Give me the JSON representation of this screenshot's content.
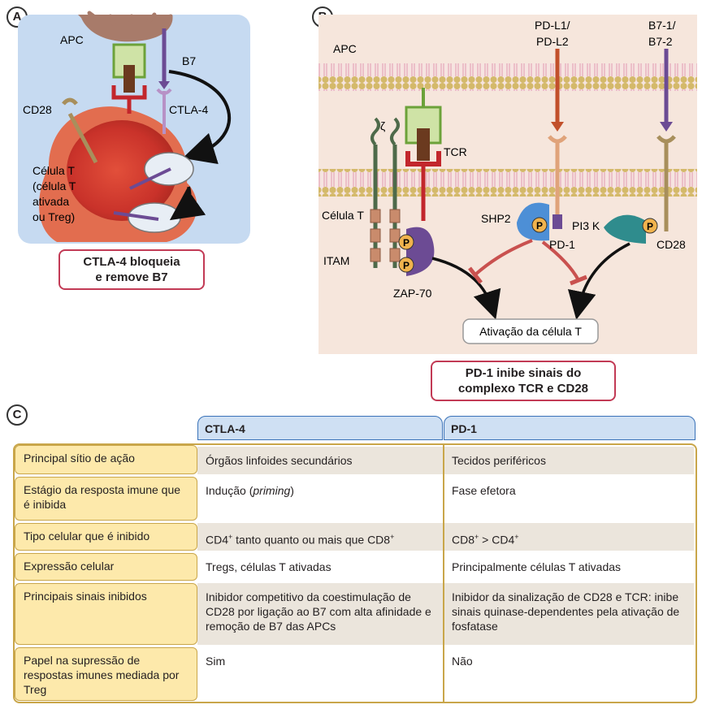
{
  "panel_a": {
    "letter": "A",
    "labels": {
      "apc": "APC",
      "b7": "B7",
      "cd28": "CD28",
      "ctla4": "CTLA-4",
      "tcell_lines": [
        "Célula T",
        "(célula T",
        "ativada",
        "ou Treg)"
      ]
    },
    "callout": [
      "CTLA-4 bloqueia",
      "e remove B7"
    ]
  },
  "panel_b": {
    "letter": "B",
    "labels": {
      "apc": "APC",
      "pdl": [
        "PD-L1/",
        "PD-L2"
      ],
      "b7": [
        "B7-1/",
        "B7-2"
      ],
      "zeta": "ζ",
      "tcr": "TCR",
      "tcell": "Célula T",
      "itam": "ITAM",
      "zap70": "ZAP-70",
      "shp2": "SHP2",
      "pi3k": "PI3 K",
      "pd1": "PD-1",
      "cd28": "CD28",
      "p": "P",
      "activation": "Ativação da célula T"
    },
    "callout": [
      "PD-1 inibe sinais do",
      "complexo TCR e CD28"
    ]
  },
  "panel_c": {
    "letter": "C",
    "columns": [
      "CTLA-4",
      "PD-1"
    ],
    "rows": [
      {
        "label": "Principal sítio de ação",
        "ctla4": "Órgãos linfoides secundários",
        "pd1": "Tecidos periféricos"
      },
      {
        "label": "Estágio da resposta imune que é inibida",
        "ctla4_pre": "Indução (",
        "ctla4_em": "priming",
        "ctla4_post": ")",
        "pd1": "Fase efetora"
      },
      {
        "label": "Tipo celular que é inibido",
        "ctla4_a": "CD4",
        "ctla4_b": " tanto quanto ou mais que CD8",
        "sup": "+",
        "pd1_a": "CD8",
        "pd1_b": " > CD4"
      },
      {
        "label": "Expressão celular",
        "ctla4": "Tregs, células T ativadas",
        "pd1": "Principalmente células T ativadas"
      },
      {
        "label": "Principais sinais inibidos",
        "ctla4": "Inibidor competitivo da coestimulação de CD28 por ligação ao B7 com alta afinidade e remoção de B7 das APCs",
        "pd1": "Inibidor da sinalização de CD28 e TCR: inibe sinais quinase-dependentes pela ativação de fosfatase"
      },
      {
        "label": "Papel na supressão de respostas imunes mediada por Treg",
        "ctla4": "Sim",
        "pd1": "Não"
      }
    ]
  },
  "colors": {
    "accent": "#c23a55",
    "table_border": "#c9a64a",
    "header_blue": "#cfe0f3",
    "label_yellow": "#fde9ab"
  }
}
